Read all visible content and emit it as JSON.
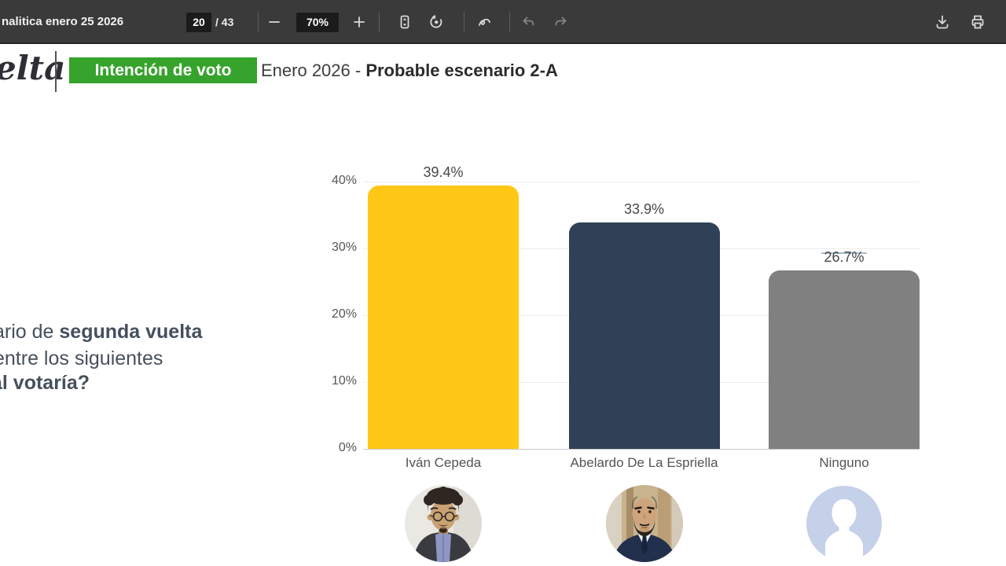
{
  "toolbar": {
    "doc_title": "nalitica enero 25 2026",
    "page_current": "20",
    "page_total": "/ 43",
    "zoom_level": "70%"
  },
  "icons": {
    "zoom_out": "minus",
    "zoom_in": "plus",
    "fit": "fit-to-page",
    "rotate": "rotate-counterclockwise",
    "draw": "draw-annotate-squiggle",
    "undo": "undo-arrow",
    "redo": "redo-arrow",
    "download": "download-arrow-tray",
    "print": "printer"
  },
  "header": {
    "logo_text": "elta",
    "highlight_label": "Intención de voto",
    "highlight_color": "#36A32C",
    "title_regular": "Enero 2026 - ",
    "title_bold": "Probable escenario 2-A"
  },
  "question": {
    "line1_regular": "ario de ",
    "line1_bold": "segunda vuelta",
    "line2": "entre los siguientes",
    "line3_bold": "ál votaría?"
  },
  "chart_data": {
    "type": "bar",
    "title": "Intención de voto Enero 2026 - Probable escenario 2-A",
    "categories": [
      "Iván Cepeda",
      "Abelardo De La Espriella",
      "Ninguno"
    ],
    "values": [
      39.4,
      33.9,
      26.7
    ],
    "value_labels": [
      "39.4%",
      "33.9%",
      "26.7%"
    ],
    "bar_colors": [
      "#FFC716",
      "#2E4157",
      "#808080"
    ],
    "y_ticks": [
      "40%",
      "30%",
      "20%",
      "10%",
      "0%"
    ],
    "ylim": [
      0,
      40
    ],
    "grid": true,
    "legend_position": "none",
    "overline_index": 2,
    "overline_color": "#a6bcc9",
    "xlabel": "",
    "ylabel": ""
  }
}
